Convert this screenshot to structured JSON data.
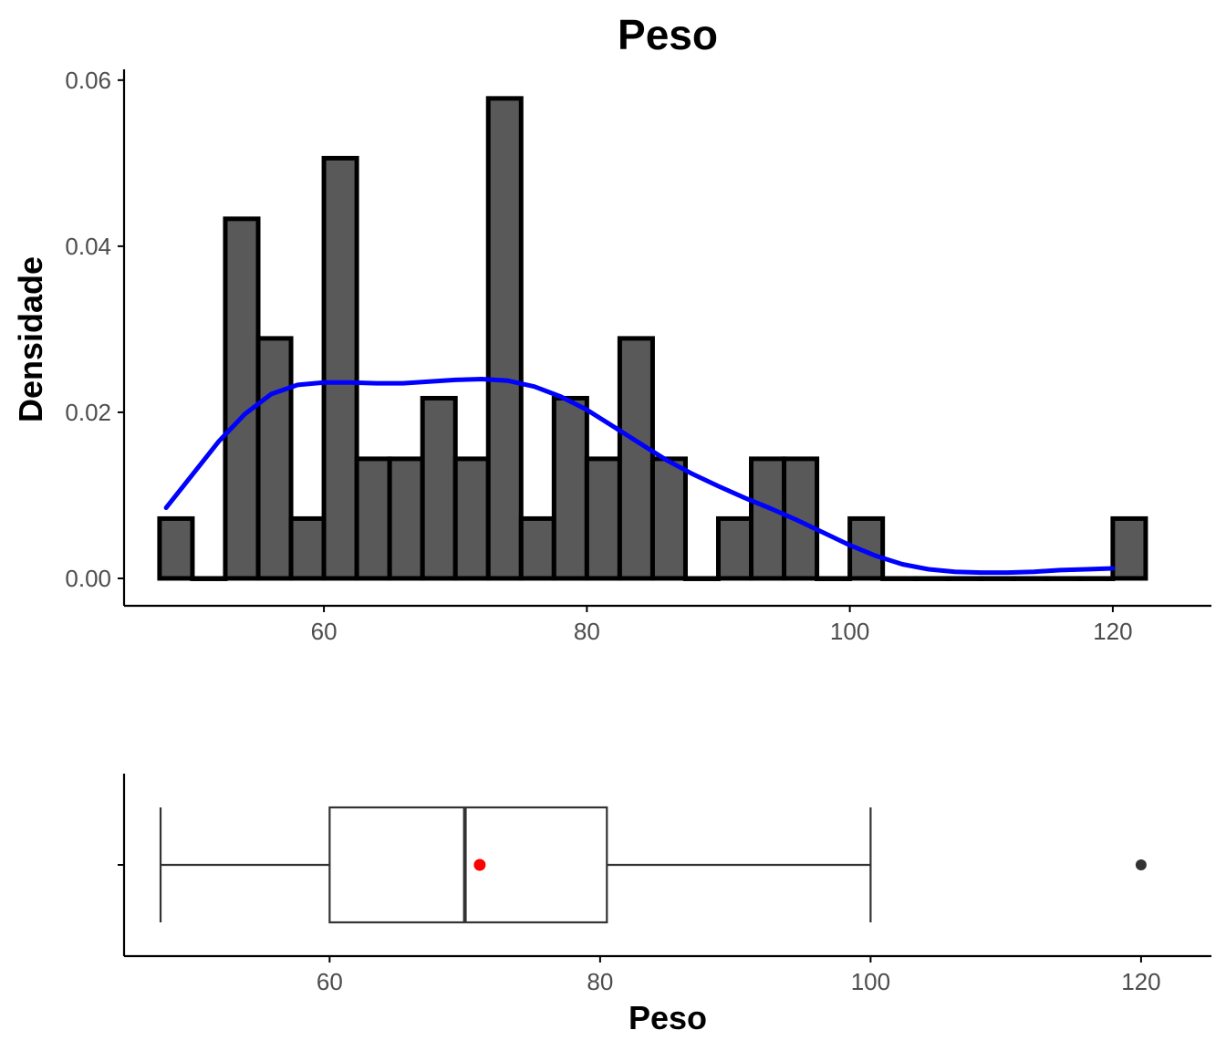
{
  "chart_data": [
    {
      "type": "bar",
      "subtype": "histogram",
      "title": "Peso",
      "xlabel": "",
      "ylabel": "Densidade",
      "xlim": [
        44.8,
        127.5
      ],
      "ylim": [
        -0.0033,
        0.0613
      ],
      "x_ticks": [
        60,
        80,
        100,
        120
      ],
      "x_tick_labels": [
        "60",
        "80",
        "100",
        "120"
      ],
      "y_ticks": [
        0,
        0.02,
        0.04,
        0.06
      ],
      "y_tick_labels": [
        "0.00",
        "0.02",
        "0.04",
        "0.06"
      ],
      "grid": false,
      "bin_width": 2.5,
      "bins": [
        {
          "x0": 47.5,
          "x1": 50.0,
          "density": 0.0072
        },
        {
          "x0": 50.0,
          "x1": 52.5,
          "density": 0.0
        },
        {
          "x0": 52.5,
          "x1": 55.0,
          "density": 0.0433
        },
        {
          "x0": 55.0,
          "x1": 57.5,
          "density": 0.0289
        },
        {
          "x0": 57.5,
          "x1": 60.0,
          "density": 0.0072
        },
        {
          "x0": 60.0,
          "x1": 62.5,
          "density": 0.0506
        },
        {
          "x0": 62.5,
          "x1": 65.0,
          "density": 0.0144
        },
        {
          "x0": 65.0,
          "x1": 67.5,
          "density": 0.0144
        },
        {
          "x0": 67.5,
          "x1": 70.0,
          "density": 0.0217
        },
        {
          "x0": 70.0,
          "x1": 72.5,
          "density": 0.0144
        },
        {
          "x0": 72.5,
          "x1": 75.0,
          "density": 0.0578
        },
        {
          "x0": 75.0,
          "x1": 77.5,
          "density": 0.0072
        },
        {
          "x0": 77.5,
          "x1": 80.0,
          "density": 0.0217
        },
        {
          "x0": 80.0,
          "x1": 82.5,
          "density": 0.0144
        },
        {
          "x0": 82.5,
          "x1": 85.0,
          "density": 0.0289
        },
        {
          "x0": 85.0,
          "x1": 87.5,
          "density": 0.0144
        },
        {
          "x0": 87.5,
          "x1": 90.0,
          "density": 0.0
        },
        {
          "x0": 90.0,
          "x1": 92.5,
          "density": 0.0072
        },
        {
          "x0": 92.5,
          "x1": 95.0,
          "density": 0.0144
        },
        {
          "x0": 95.0,
          "x1": 97.5,
          "density": 0.0144
        },
        {
          "x0": 97.5,
          "x1": 100.0,
          "density": 0.0
        },
        {
          "x0": 100.0,
          "x1": 102.5,
          "density": 0.0072
        },
        {
          "x0": 102.5,
          "x1": 105.0,
          "density": 0.0
        },
        {
          "x0": 105.0,
          "x1": 107.5,
          "density": 0.0
        },
        {
          "x0": 107.5,
          "x1": 110.0,
          "density": 0.0
        },
        {
          "x0": 110.0,
          "x1": 112.5,
          "density": 0.0
        },
        {
          "x0": 112.5,
          "x1": 115.0,
          "density": 0.0
        },
        {
          "x0": 115.0,
          "x1": 117.5,
          "density": 0.0
        },
        {
          "x0": 117.5,
          "x1": 120.0,
          "density": 0.0
        },
        {
          "x0": 120.0,
          "x1": 122.5,
          "density": 0.0072
        }
      ],
      "density_curve": {
        "x": [
          48,
          50,
          52,
          54,
          56,
          58,
          60,
          62,
          64,
          66,
          68,
          70,
          72,
          74,
          76,
          78,
          80,
          82,
          84,
          86,
          88,
          90,
          92,
          94,
          96,
          98,
          100,
          102,
          104,
          106,
          108,
          110,
          112,
          114,
          116,
          118,
          120
        ],
        "y": [
          0.0085,
          0.0125,
          0.0165,
          0.0198,
          0.0222,
          0.0233,
          0.0236,
          0.0236,
          0.0235,
          0.0235,
          0.0237,
          0.0239,
          0.024,
          0.0238,
          0.0231,
          0.0219,
          0.0203,
          0.0183,
          0.0163,
          0.0143,
          0.0126,
          0.0111,
          0.0097,
          0.0084,
          0.007,
          0.0055,
          0.004,
          0.0027,
          0.0017,
          0.0011,
          0.0008,
          0.0007,
          0.0007,
          0.0008,
          0.001,
          0.0011,
          0.0012
        ]
      },
      "colors": {
        "bar_fill": "#595959",
        "bar_outline": "#000000",
        "curve": "#0000ff"
      }
    },
    {
      "type": "box",
      "xlabel": "Peso",
      "ylabel": "",
      "xlim": [
        44.8,
        125.2
      ],
      "x_ticks": [
        60,
        80,
        100,
        120
      ],
      "x_tick_labels": [
        "60",
        "80",
        "100",
        "120"
      ],
      "grid": false,
      "box": {
        "whisker_low": 47.5,
        "q1": 60.0,
        "median": 70.0,
        "q3": 80.5,
        "whisker_high": 100.0,
        "mean": 71.1,
        "outliers": [
          120.0
        ]
      },
      "colors": {
        "box_outline": "#333333",
        "mean_point": "#ff0000",
        "outlier_point": "#333333"
      }
    }
  ]
}
